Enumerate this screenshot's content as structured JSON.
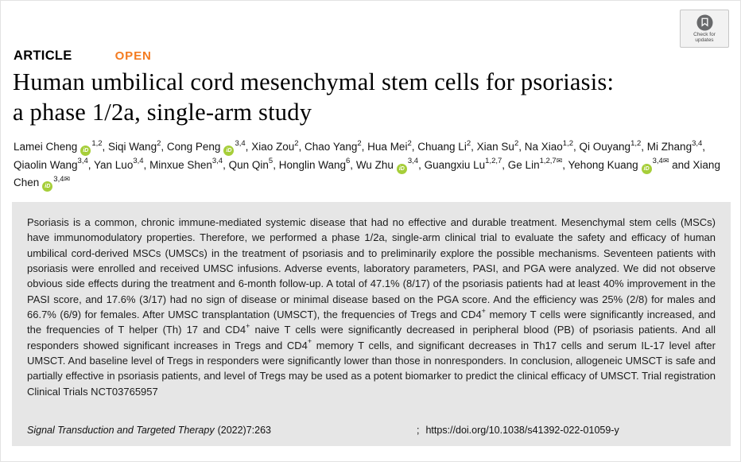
{
  "badge": {
    "line1": "Check for",
    "line2": "updates"
  },
  "header": {
    "article_label": "ARTICLE",
    "open_label": "OPEN"
  },
  "title": {
    "line1": "Human umbilical cord mesenchymal stem cells for psoriasis:",
    "line2": "a phase 1/2a, single-arm study"
  },
  "authors": [
    {
      "name": "Lamei Cheng",
      "orcid": true,
      "sup": "1,2",
      "mail": false,
      "sep": ", "
    },
    {
      "name": "Siqi Wang",
      "orcid": false,
      "sup": "2",
      "mail": false,
      "sep": ", "
    },
    {
      "name": "Cong Peng",
      "orcid": true,
      "sup": "3,4",
      "mail": false,
      "sep": ", "
    },
    {
      "name": "Xiao Zou",
      "orcid": false,
      "sup": "2",
      "mail": false,
      "sep": ", "
    },
    {
      "name": "Chao Yang",
      "orcid": false,
      "sup": "2",
      "mail": false,
      "sep": ", "
    },
    {
      "name": "Hua Mei",
      "orcid": false,
      "sup": "2",
      "mail": false,
      "sep": ", "
    },
    {
      "name": "Chuang Li",
      "orcid": false,
      "sup": "2",
      "mail": false,
      "sep": ", "
    },
    {
      "name": "Xian Su",
      "orcid": false,
      "sup": "2",
      "mail": false,
      "sep": ", "
    },
    {
      "name": "Na Xiao",
      "orcid": false,
      "sup": "1,2",
      "mail": false,
      "sep": ", "
    },
    {
      "name": "Qi Ouyang",
      "orcid": false,
      "sup": "1,2",
      "mail": false,
      "sep": ", "
    },
    {
      "name": "Mi Zhang",
      "orcid": false,
      "sup": "3,4",
      "mail": false,
      "sep": ", "
    },
    {
      "name": "Qiaolin Wang",
      "orcid": false,
      "sup": "3,4",
      "mail": false,
      "sep": ", "
    },
    {
      "name": "Yan Luo",
      "orcid": false,
      "sup": "3,4",
      "mail": false,
      "sep": ", "
    },
    {
      "name": "Minxue Shen",
      "orcid": false,
      "sup": "3,4",
      "mail": false,
      "sep": ", "
    },
    {
      "name": "Qun Qin",
      "orcid": false,
      "sup": "5",
      "mail": false,
      "sep": ", "
    },
    {
      "name": "Honglin Wang",
      "orcid": false,
      "sup": "6",
      "mail": false,
      "sep": ", "
    },
    {
      "name": "Wu Zhu",
      "orcid": true,
      "sup": "3,4",
      "mail": false,
      "sep": ", "
    },
    {
      "name": "Guangxiu Lu",
      "orcid": false,
      "sup": "1,2,7",
      "mail": false,
      "sep": ", "
    },
    {
      "name": "Ge Lin",
      "orcid": false,
      "sup": "1,2,7",
      "mail": true,
      "sep": ", "
    },
    {
      "name": "Yehong Kuang",
      "orcid": true,
      "sup": "3,4",
      "mail": true,
      "sep": " and "
    },
    {
      "name": "Xiang Chen",
      "orcid": true,
      "sup": "3,4",
      "mail": true,
      "sep": ""
    }
  ],
  "abstract": {
    "segments": [
      {
        "text": "Psoriasis is a common, chronic immune-mediated systemic disease that had no effective and durable treatment. Mesenchymal stem cells (MSCs) have immunomodulatory properties. Therefore, we performed a phase 1/2a, single-arm clinical trial to evaluate the safety and efficacy of human umbilical cord-derived MSCs (UMSCs) in the treatment of psoriasis and to preliminarily explore the possible mechanisms. Seventeen patients with psoriasis were enrolled and received UMSC infusions. Adverse events, laboratory parameters, PASI, and PGA were analyzed. We did not observe obvious side effects during the treatment and 6-month follow-up. A total of 47.1% (8/17) of the psoriasis patients had at least 40% improvement in the PASI score, and 17.6% (3/17) had no sign of disease or minimal disease based on the PGA score. And the efficiency was 25% (2/8) for males and 66.7% (6/9) for females. After UMSC transplantation (UMSCT), the frequencies of Tregs and CD4"
      },
      {
        "text": "+",
        "sup": true
      },
      {
        "text": " memory T cells were significantly increased, and the frequencies of T helper (Th) 17 and CD4"
      },
      {
        "text": "+",
        "sup": true
      },
      {
        "text": " naive T cells were significantly decreased in peripheral blood (PB) of psoriasis patients. And all responders showed significant increases in Tregs and CD4"
      },
      {
        "text": "+",
        "sup": true
      },
      {
        "text": " memory T cells, and significant decreases in Th17 cells and serum IL-17 level after UMSCT. And baseline level of Tregs in responders were significantly lower than those in nonresponders. In conclusion, allogeneic UMSCT is safe and partially effective in psoriasis patients, and level of Tregs may be used as a potent biomarker to predict the clinical efficacy of UMSCT. Trial registration Clinical Trials NCT03765957"
      }
    ]
  },
  "footer": {
    "journal": "Signal Transduction and Targeted Therapy",
    "citation": "(2022)7:263",
    "separator": ";",
    "doi": "https://doi.org/10.1038/s41392-022-01059-y"
  },
  "colors": {
    "open_accent": "#f47b20",
    "orcid_green": "#a6ce39",
    "abstract_bg": "#e6e6e6",
    "crossmark_gray": "#68696b"
  }
}
